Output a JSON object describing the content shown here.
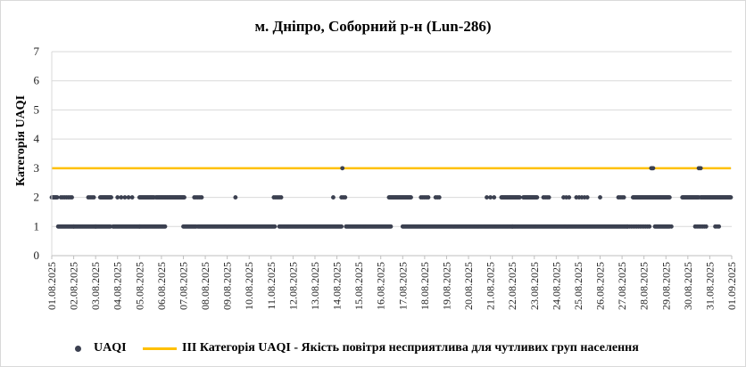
{
  "chart_data": {
    "type": "scatter",
    "title": "м. Дніпро, Соборний р-н (Lun-286)",
    "xlabel": "",
    "ylabel": "Категорія UAQI",
    "ylim": [
      0,
      7
    ],
    "y_ticks": [
      "0",
      "1",
      "2",
      "3",
      "4",
      "5",
      "6",
      "7"
    ],
    "x_range": [
      "2025-08-01",
      "2025-09-01"
    ],
    "x_ticks": [
      "01.08.2025",
      "02.08.2025",
      "03.08.2025",
      "04.08.2025",
      "05.08.2025",
      "06.08.2025",
      "07.08.2025",
      "08.08.2025",
      "09.08.2025",
      "10.08.2025",
      "11.08.2025",
      "12.08.2025",
      "13.08.2025",
      "14.08.2025",
      "15.08.2025",
      "16.08.2025",
      "17.08.2025",
      "18.08.2025",
      "19.08.2025",
      "20.08.2025",
      "21.08.2025",
      "22.08.2025",
      "23.08.2025",
      "24.08.2025",
      "25.08.2025",
      "26.08.2025",
      "27.08.2025",
      "28.08.2025",
      "29.08.2025",
      "30.08.2025",
      "31.08.2025",
      "01.09.2025"
    ],
    "grid": "horizontal",
    "legend_position": "bottom",
    "series": [
      {
        "name": "UAQI",
        "color": "#3b4050",
        "marker": "dot",
        "segments": [
          {
            "from": "2025-08-01 00:00",
            "to": "2025-08-01 06:00",
            "value": 2,
            "step_hours": 1
          },
          {
            "from": "2025-08-01 07:00",
            "to": "2025-08-02 00:00",
            "value": 1,
            "step_hours": 1
          },
          {
            "from": "2025-08-01 10:00",
            "to": "2025-08-01 23:00",
            "value": 2,
            "step_hours": 2
          },
          {
            "from": "2025-08-02 00:00",
            "to": "2025-08-03 00:00",
            "value": 1,
            "step_hours": 1
          },
          {
            "from": "2025-08-02 16:00",
            "to": "2025-08-02 22:00",
            "value": 2,
            "step_hours": 2
          },
          {
            "from": "2025-08-03 00:00",
            "to": "2025-08-03 16:00",
            "value": 1,
            "step_hours": 1
          },
          {
            "from": "2025-08-03 05:00",
            "to": "2025-08-03 17:00",
            "value": 2,
            "step_hours": 1
          },
          {
            "from": "2025-08-03 19:00",
            "to": "2025-08-05 00:00",
            "value": 1,
            "step_hours": 1
          },
          {
            "from": "2025-08-04 00:00",
            "to": "2025-08-04 18:00",
            "value": 2,
            "step_hours": 4
          },
          {
            "from": "2025-08-05 00:00",
            "to": "2025-08-06 04:00",
            "value": 1,
            "step_hours": 1
          },
          {
            "from": "2025-08-05 00:00",
            "to": "2025-08-05 16:00",
            "value": 2,
            "step_hours": 1
          },
          {
            "from": "2025-08-05 18:00",
            "to": "2025-08-07 01:00",
            "value": 2,
            "step_hours": 1
          },
          {
            "from": "2025-08-07 00:00",
            "to": "2025-08-07 14:00",
            "value": 1,
            "step_hours": 1
          },
          {
            "from": "2025-08-07 12:00",
            "to": "2025-08-07 20:00",
            "value": 2,
            "step_hours": 2
          },
          {
            "from": "2025-08-07 16:00",
            "to": "2025-08-11 04:00",
            "value": 1,
            "step_hours": 1
          },
          {
            "from": "2025-08-09 09:00",
            "to": "2025-08-09 09:00",
            "value": 2,
            "step_hours": 1
          },
          {
            "from": "2025-08-11 03:00",
            "to": "2025-08-11 12:00",
            "value": 2,
            "step_hours": 2
          },
          {
            "from": "2025-08-11 09:00",
            "to": "2025-08-14 05:00",
            "value": 1,
            "step_hours": 1
          },
          {
            "from": "2025-08-13 20:00",
            "to": "2025-08-13 20:00",
            "value": 2,
            "step_hours": 1
          },
          {
            "from": "2025-08-14 06:00",
            "to": "2025-08-14 06:00",
            "value": 3,
            "step_hours": 1
          },
          {
            "from": "2025-08-14 05:00",
            "to": "2025-08-14 10:00",
            "value": 2,
            "step_hours": 2
          },
          {
            "from": "2025-08-14 10:00",
            "to": "2025-08-16 11:00",
            "value": 1,
            "step_hours": 1
          },
          {
            "from": "2025-08-16 09:00",
            "to": "2025-08-17 09:00",
            "value": 2,
            "step_hours": 1
          },
          {
            "from": "2025-08-17 00:00",
            "to": "2025-08-20 23:00",
            "value": 1,
            "step_hours": 1
          },
          {
            "from": "2025-08-17 20:00",
            "to": "2025-08-18 04:00",
            "value": 2,
            "step_hours": 2
          },
          {
            "from": "2025-08-18 12:00",
            "to": "2025-08-18 16:00",
            "value": 2,
            "step_hours": 2
          },
          {
            "from": "2025-08-20 20:00",
            "to": "2025-08-21 06:00",
            "value": 2,
            "step_hours": 4
          },
          {
            "from": "2025-08-21 00:00",
            "to": "2025-08-22 00:00",
            "value": 1,
            "step_hours": 1
          },
          {
            "from": "2025-08-21 12:00",
            "to": "2025-08-22 08:00",
            "value": 2,
            "step_hours": 1
          },
          {
            "from": "2025-08-22 00:00",
            "to": "2025-08-27 06:00",
            "value": 1,
            "step_hours": 1
          },
          {
            "from": "2025-08-22 12:00",
            "to": "2025-08-23 03:00",
            "value": 2,
            "step_hours": 1
          },
          {
            "from": "2025-08-23 10:00",
            "to": "2025-08-23 16:00",
            "value": 2,
            "step_hours": 2
          },
          {
            "from": "2025-08-24 08:00",
            "to": "2025-08-24 14:00",
            "value": 2,
            "step_hours": 3
          },
          {
            "from": "2025-08-24 22:00",
            "to": "2025-08-25 12:00",
            "value": 2,
            "step_hours": 3
          },
          {
            "from": "2025-08-26 00:00",
            "to": "2025-08-26 00:00",
            "value": 2,
            "step_hours": 1
          },
          {
            "from": "2025-08-26 20:00",
            "to": "2025-08-27 02:00",
            "value": 2,
            "step_hours": 2
          },
          {
            "from": "2025-08-27 06:00",
            "to": "2025-08-28 06:00",
            "value": 1,
            "step_hours": 2
          },
          {
            "from": "2025-08-27 12:00",
            "to": "2025-08-29 04:00",
            "value": 2,
            "step_hours": 1
          },
          {
            "from": "2025-08-28 08:00",
            "to": "2025-08-28 10:00",
            "value": 3,
            "step_hours": 1
          },
          {
            "from": "2025-08-28 12:00",
            "to": "2025-08-29 04:00",
            "value": 1,
            "step_hours": 1
          },
          {
            "from": "2025-08-29 06:00",
            "to": "2025-08-29 06:00",
            "value": 1,
            "step_hours": 1
          },
          {
            "from": "2025-08-29 18:00",
            "to": "2025-08-30 12:00",
            "value": 2,
            "step_hours": 1
          },
          {
            "from": "2025-08-30 12:00",
            "to": "2025-08-30 14:00",
            "value": 3,
            "step_hours": 2
          },
          {
            "from": "2025-08-30 08:00",
            "to": "2025-08-30 20:00",
            "value": 1,
            "step_hours": 2
          },
          {
            "from": "2025-08-30 14:00",
            "to": "2025-08-31 23:00",
            "value": 2,
            "step_hours": 1
          },
          {
            "from": "2025-08-31 06:00",
            "to": "2025-08-31 10:00",
            "value": 1,
            "step_hours": 2
          }
        ]
      },
      {
        "name": "III Категорія UAQI - Якість повітря несприятлива для чутливих груп населення",
        "color": "#ffc000",
        "marker": "line",
        "x": [
          "2025-08-01",
          "2025-08-31 23:00"
        ],
        "y": [
          3,
          3
        ]
      }
    ]
  },
  "legend": {
    "uaqi_label": "UAQI",
    "threshold_label": "III Категорія UAQI - Якість повітря несприятлива для чутливих груп населення"
  }
}
